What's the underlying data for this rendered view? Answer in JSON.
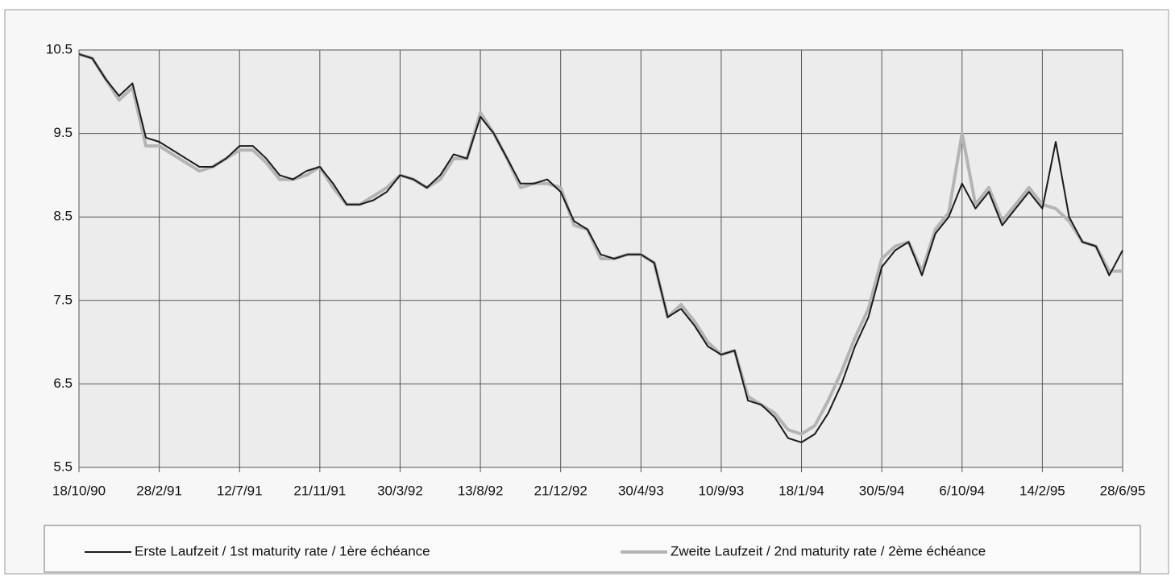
{
  "chart_data": {
    "type": "line",
    "categories": [
      "18/10/90",
      null,
      null,
      null,
      null,
      null,
      "28/2/91",
      null,
      null,
      null,
      null,
      null,
      "12/7/91",
      null,
      null,
      null,
      null,
      null,
      "21/11/91",
      null,
      null,
      null,
      null,
      null,
      "30/3/92",
      null,
      null,
      null,
      null,
      null,
      "13/8/92",
      null,
      null,
      null,
      null,
      null,
      "21/12/92",
      null,
      null,
      null,
      null,
      null,
      "30/4/93",
      null,
      null,
      null,
      null,
      null,
      "10/9/93",
      null,
      null,
      null,
      null,
      null,
      "18/1/94",
      null,
      null,
      null,
      null,
      null,
      "30/5/94",
      null,
      null,
      null,
      null,
      null,
      "6/10/94",
      null,
      null,
      null,
      null,
      null,
      "14/2/95",
      null,
      null,
      null,
      null,
      null,
      "28/6/95"
    ],
    "series": [
      {
        "name": "Erste Laufzeit / 1st maturity rate / 1ère échéance",
        "color": "#1a1a1a",
        "values": [
          10.45,
          10.4,
          10.15,
          9.95,
          10.1,
          9.45,
          9.4,
          9.3,
          9.2,
          9.1,
          9.1,
          9.2,
          9.35,
          9.35,
          9.2,
          9.0,
          8.95,
          9.05,
          9.1,
          8.9,
          8.65,
          8.65,
          8.7,
          8.8,
          9.0,
          8.95,
          8.85,
          9.0,
          9.25,
          9.2,
          9.7,
          9.5,
          9.2,
          8.9,
          8.9,
          8.95,
          8.8,
          8.45,
          8.35,
          8.05,
          8.0,
          8.05,
          8.05,
          7.95,
          7.3,
          7.4,
          7.2,
          6.95,
          6.85,
          6.9,
          6.3,
          6.25,
          6.1,
          5.85,
          5.8,
          5.9,
          6.15,
          6.5,
          6.95,
          7.3,
          7.9,
          8.1,
          8.2,
          7.8,
          8.3,
          8.5,
          8.9,
          8.6,
          8.8,
          8.4,
          8.6,
          8.8,
          8.6,
          9.4,
          8.5,
          8.2,
          8.15,
          7.8,
          8.1
        ]
      },
      {
        "name": "Zweite Laufzeit / 2nd maturity rate / 2ème échéance",
        "color": "#b4b4b4",
        "values": [
          10.45,
          10.4,
          10.15,
          9.9,
          10.05,
          9.35,
          9.35,
          9.25,
          9.15,
          9.05,
          9.1,
          9.2,
          9.3,
          9.3,
          9.15,
          8.95,
          8.95,
          9.0,
          9.1,
          8.85,
          8.65,
          8.65,
          8.75,
          8.85,
          9.0,
          8.95,
          8.85,
          8.95,
          9.2,
          9.2,
          9.75,
          9.5,
          9.2,
          8.85,
          8.9,
          8.9,
          8.85,
          8.4,
          8.35,
          8.0,
          8.0,
          8.05,
          8.05,
          7.95,
          7.3,
          7.45,
          7.25,
          7.0,
          6.85,
          6.9,
          6.35,
          6.25,
          6.15,
          5.95,
          5.9,
          6.0,
          6.3,
          6.65,
          7.05,
          7.4,
          8.0,
          8.15,
          8.2,
          7.85,
          8.35,
          8.55,
          9.5,
          8.65,
          8.85,
          8.45,
          8.65,
          8.85,
          8.65,
          8.6,
          8.45,
          8.2,
          8.15,
          7.85,
          7.85
        ]
      }
    ],
    "ylim": [
      5.5,
      10.5
    ],
    "yticks": [
      5.5,
      6.5,
      7.5,
      8.5,
      9.5,
      10.5
    ],
    "grid": true
  }
}
